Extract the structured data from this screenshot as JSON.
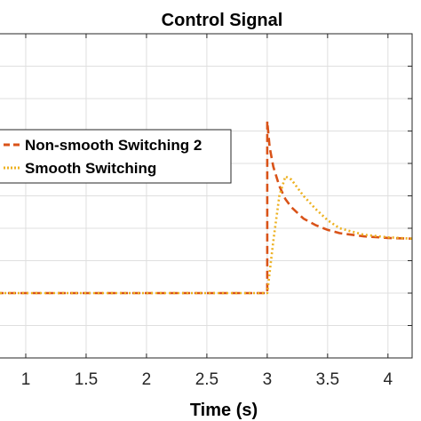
{
  "chart_data": {
    "type": "line",
    "title": "Control Signal",
    "xlabel": "Time (s)",
    "ylabel": "",
    "xlim": [
      0.75,
      4.2
    ],
    "ylim": [
      0,
      10
    ],
    "x_ticks": [
      1,
      1.5,
      2,
      2.5,
      3,
      3.5,
      4
    ],
    "x_tick_labels": [
      "1",
      "1.5",
      "2",
      "2.5",
      "3",
      "3.5",
      "4"
    ],
    "y_grid": [
      1,
      2,
      3,
      4,
      5,
      6,
      7,
      8,
      9
    ],
    "grid": true,
    "legend_placement": "center-left",
    "series": [
      {
        "name": "Non-smooth Switching 2",
        "style": "dashed",
        "color": "#D95319",
        "x": [
          0.75,
          3.0,
          3.0,
          3.02,
          3.05,
          3.1,
          3.15,
          3.2,
          3.3,
          3.4,
          3.5,
          3.6,
          3.8,
          4.0,
          4.2
        ],
        "y": [
          2.0,
          2.0,
          7.3,
          6.5,
          5.9,
          5.3,
          4.9,
          4.65,
          4.3,
          4.1,
          3.95,
          3.85,
          3.75,
          3.7,
          3.68
        ]
      },
      {
        "name": "Smooth Switching",
        "style": "dotted",
        "color": "#EDB120",
        "x": [
          0.75,
          3.0,
          3.05,
          3.1,
          3.15,
          3.2,
          3.3,
          3.4,
          3.5,
          3.6,
          3.8,
          4.0,
          4.2
        ],
        "y": [
          2.0,
          2.0,
          3.6,
          5.0,
          5.6,
          5.5,
          5.0,
          4.6,
          4.25,
          4.0,
          3.8,
          3.72,
          3.68
        ]
      }
    ]
  },
  "colors": {
    "axis": "#262626",
    "grid": "#dfdfdf"
  }
}
